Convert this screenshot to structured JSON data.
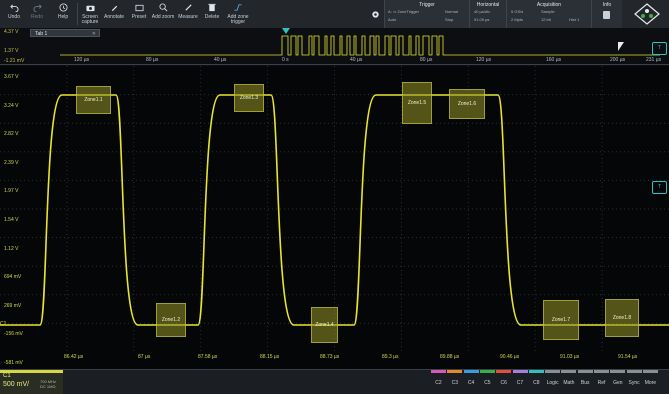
{
  "toolbar": {
    "undo": "Undo",
    "redo": "Redo",
    "help": "Help",
    "screen_capture": "Screen capture",
    "annotate": "Annotate",
    "preset": "Preset",
    "add_zoom": "Add zoom",
    "measure": "Measure",
    "delete": "Delete",
    "add_zone_trigger": "Add zone trigger"
  },
  "trigger": {
    "title": "Trigger",
    "source": "A: ⇒ ZoneTrigger",
    "mode": "Normal",
    "level": "Auto",
    "state": "Stop"
  },
  "horizontal": {
    "title": "Horizontal",
    "scale": "40 µs/div",
    "position": "91.09 µs"
  },
  "acquisition": {
    "title": "Acquisition",
    "rate": "5 GS/s",
    "mode": "Sample",
    "points": "2 Mpts",
    "bits": "12 bit",
    "hist": "Hist 1"
  },
  "info": {
    "title": "Info"
  },
  "zoom": {
    "tab": "Tab 1",
    "level_top": "4.37 V",
    "level_mid": "1.37 V",
    "level_bot": "-1.21 mV",
    "ticks": [
      "120 µs",
      "80 µs",
      "40 µs",
      "0 s",
      "40 µs",
      "80 µs",
      "120 µs",
      "160 µs",
      "200 µs",
      "231 µs"
    ]
  },
  "yaxis": [
    "3.67 V",
    "3.24 V",
    "2.82 V",
    "2.39 V",
    "1.97 V",
    "1.54 V",
    "1.12 V",
    "694 mV",
    "269 mV",
    "-156 mV",
    "-581 mV"
  ],
  "xaxis": [
    "86.42 µs",
    "87 µs",
    "87.58 µs",
    "88.15 µs",
    "88.73 µs",
    "89.3 µs",
    "89.88 µs",
    "90.46 µs",
    "91.03 µs",
    "91.54 µs"
  ],
  "zones": [
    "Zone1.1",
    "Zone1.3",
    "Zone1.2",
    "Zone1.4",
    "Zone1.5",
    "Zone1.6",
    "Zone1.7",
    "Zone1.8"
  ],
  "markers": {
    "t_main": "T",
    "ch1_zoom": "T",
    "ch1_level": "T",
    "ch1_main": "C1"
  },
  "channel": {
    "name": "C1",
    "scale": "500 mV/",
    "bandwidth": "700 MHz",
    "coupling": "DC 1MΩ",
    "color": "#d8d845"
  },
  "bottom_buttons": [
    {
      "label": "C2",
      "color": "#d45ab8"
    },
    {
      "label": "C3",
      "color": "#e48a2c"
    },
    {
      "label": "C4",
      "color": "#3a9be0"
    },
    {
      "label": "C5",
      "color": "#3ab04a"
    },
    {
      "label": "C6",
      "color": "#e0503a"
    },
    {
      "label": "C7",
      "color": "#a57ee0"
    },
    {
      "label": "C8",
      "color": "#30c0c0"
    },
    {
      "label": "Logic",
      "color": "#8a8f94"
    },
    {
      "label": "Math",
      "color": "#8a8f94"
    },
    {
      "label": "Bus",
      "color": "#8a8f94"
    },
    {
      "label": "Ref",
      "color": "#8a8f94"
    },
    {
      "label": "Gen",
      "color": "#8a8f94"
    },
    {
      "label": "Sync",
      "color": "#8a8f94"
    },
    {
      "label": "More",
      "color": "#8a8f94"
    }
  ],
  "colors": {
    "trace": "#e6e62e",
    "accent": "#2cc3c0",
    "grid": "#2a2f35"
  }
}
